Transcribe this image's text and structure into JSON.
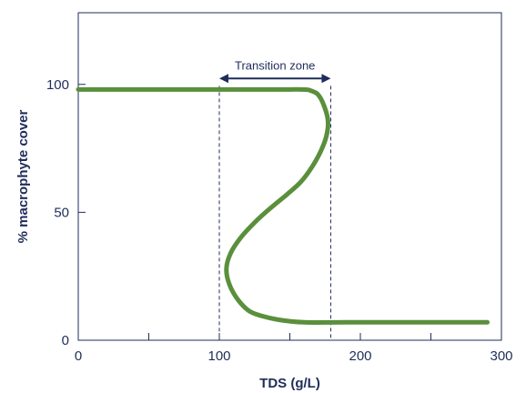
{
  "chart_data": {
    "type": "line",
    "title": "",
    "xlabel": "TDS (g/L)",
    "ylabel": "% macrophyte cover",
    "xlim": [
      0,
      300
    ],
    "ylim": [
      0,
      128
    ],
    "x_ticks": [
      0,
      50,
      100,
      150,
      200,
      250,
      300
    ],
    "x_tick_labels": [
      "0",
      "",
      "100",
      "",
      "200",
      "",
      "300"
    ],
    "y_ticks": [
      0,
      50,
      100
    ],
    "y_tick_labels": [
      "0",
      "50",
      "100"
    ],
    "grid": false,
    "legend": "none",
    "series": [
      {
        "color": "#5a8f3c",
        "points": [
          [
            0,
            98
          ],
          [
            30,
            98
          ],
          [
            60,
            98
          ],
          [
            100,
            98
          ],
          [
            140,
            98
          ],
          [
            160,
            98
          ],
          [
            165,
            97.5
          ],
          [
            170,
            96
          ],
          [
            174,
            92
          ],
          [
            177,
            86
          ],
          [
            176,
            80
          ],
          [
            172,
            74
          ],
          [
            166,
            68
          ],
          [
            158,
            62
          ],
          [
            148,
            57
          ],
          [
            137,
            52
          ],
          [
            125,
            46
          ],
          [
            115,
            40
          ],
          [
            108,
            34
          ],
          [
            105,
            28
          ],
          [
            107,
            22
          ],
          [
            113,
            16
          ],
          [
            121,
            11.5
          ],
          [
            130,
            9.5
          ],
          [
            142,
            8
          ],
          [
            160,
            7
          ],
          [
            190,
            7
          ],
          [
            230,
            7
          ],
          [
            260,
            7
          ],
          [
            290,
            7
          ]
        ]
      }
    ],
    "vertical_lines": [
      100,
      179
    ],
    "annotations": [
      {
        "text": "Transition zone",
        "x_from": 100,
        "x_to": 179,
        "y": 108,
        "style": "double-arrow"
      }
    ]
  }
}
